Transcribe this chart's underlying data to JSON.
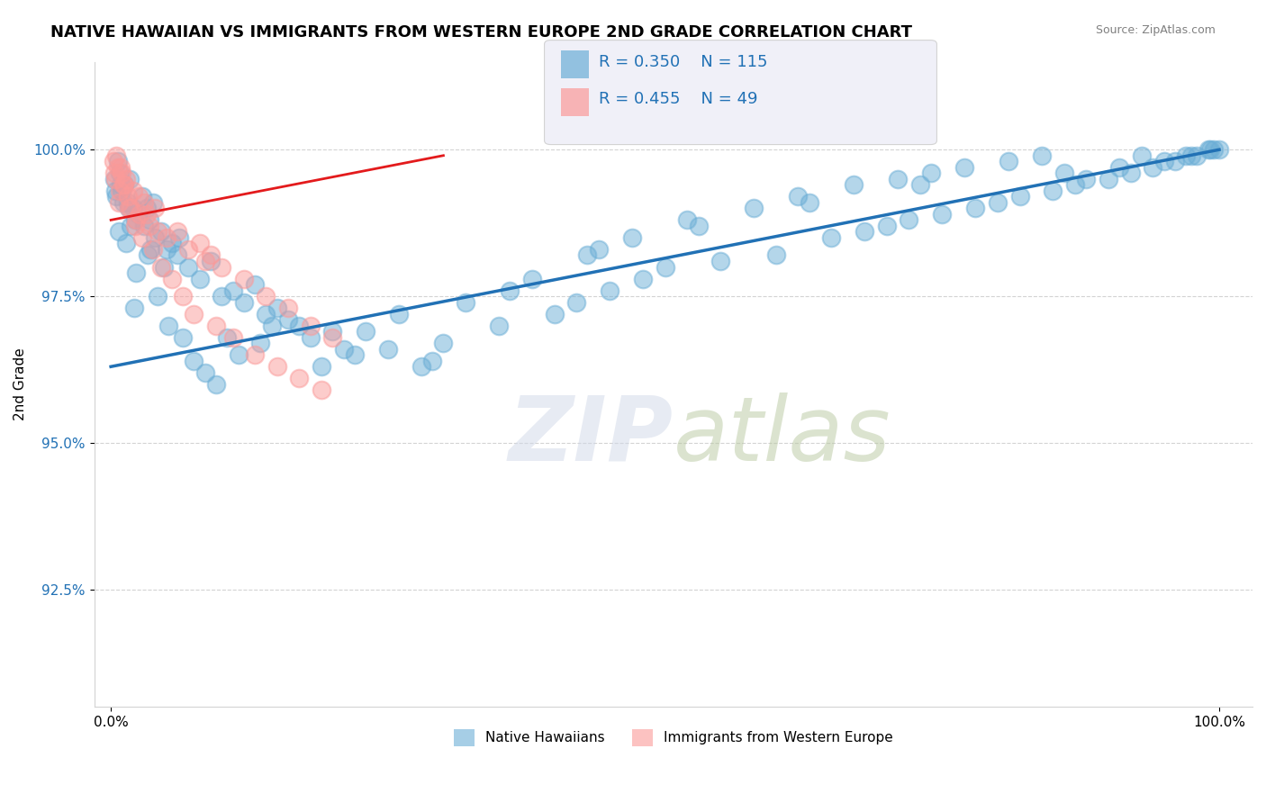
{
  "title": "NATIVE HAWAIIAN VS IMMIGRANTS FROM WESTERN EUROPE 2ND GRADE CORRELATION CHART",
  "source_text": "Source: ZipAtlas.com",
  "ylabel": "2nd Grade",
  "xlabel": "",
  "x_tick_labels": [
    "0.0%",
    "100.0%"
  ],
  "y_tick_labels": [
    "92.5%",
    "95.0%",
    "97.5%",
    "100.0%"
  ],
  "ylim": [
    90.5,
    101.5
  ],
  "xlim": [
    -1.5,
    103.0
  ],
  "blue_color": "#6baed6",
  "blue_line_color": "#2171b5",
  "pink_color": "#fb9a99",
  "pink_line_color": "#e31a1c",
  "legend_bg": "#e8e8f0",
  "legend_r1": "R = 0.350",
  "legend_n1": "N = 115",
  "legend_r2": "R = 0.455",
  "legend_n2": "N = 49",
  "watermark": "ZIPatlas",
  "blue_r": 0.35,
  "blue_n": 115,
  "pink_r": 0.455,
  "pink_n": 49,
  "blue_x_start": 0.0,
  "blue_x_end": 100.0,
  "blue_y_start": 96.3,
  "blue_y_end": 100.0,
  "pink_x_start": 0.0,
  "pink_x_end": 30.0,
  "pink_y_start": 98.8,
  "pink_y_end": 99.9,
  "blue_scatter_x": [
    0.3,
    0.5,
    0.6,
    0.8,
    1.0,
    1.2,
    1.5,
    1.7,
    2.0,
    2.2,
    2.5,
    2.8,
    3.0,
    3.2,
    3.5,
    3.8,
    4.0,
    4.5,
    5.0,
    5.5,
    6.0,
    7.0,
    8.0,
    9.0,
    10.0,
    11.0,
    12.0,
    13.0,
    14.0,
    15.0,
    16.0,
    17.0,
    18.0,
    20.0,
    22.0,
    25.0,
    28.0,
    30.0,
    35.0,
    40.0,
    42.0,
    45.0,
    48.0,
    50.0,
    55.0,
    60.0,
    65.0,
    68.0,
    70.0,
    72.0,
    75.0,
    78.0,
    80.0,
    82.0,
    85.0,
    87.0,
    90.0,
    92.0,
    94.0,
    95.0,
    96.0,
    97.0,
    98.0,
    99.0,
    99.5,
    100.0,
    0.4,
    0.7,
    1.1,
    1.4,
    1.8,
    2.3,
    3.3,
    4.2,
    5.2,
    6.5,
    7.5,
    8.5,
    9.5,
    11.5,
    13.5,
    19.0,
    23.0,
    26.0,
    32.0,
    38.0,
    43.0,
    47.0,
    52.0,
    58.0,
    62.0,
    67.0,
    71.0,
    74.0,
    77.0,
    81.0,
    84.0,
    88.0,
    91.0,
    93.0,
    97.5,
    99.2,
    4.8,
    2.1,
    0.9,
    1.6,
    3.6,
    6.2,
    10.5,
    14.5,
    21.0,
    29.0,
    36.0,
    44.0,
    53.0,
    63.0,
    73.0,
    86.0
  ],
  "blue_scatter_y": [
    99.5,
    99.2,
    99.8,
    99.6,
    99.3,
    99.4,
    99.1,
    99.5,
    99.0,
    98.8,
    98.9,
    99.2,
    98.7,
    99.0,
    98.8,
    99.1,
    98.5,
    98.6,
    98.3,
    98.4,
    98.2,
    98.0,
    97.8,
    98.1,
    97.5,
    97.6,
    97.4,
    97.7,
    97.2,
    97.3,
    97.1,
    97.0,
    96.8,
    96.9,
    96.5,
    96.6,
    96.3,
    96.7,
    97.0,
    97.2,
    97.4,
    97.6,
    97.8,
    98.0,
    98.1,
    98.2,
    98.5,
    98.6,
    98.7,
    98.8,
    98.9,
    99.0,
    99.1,
    99.2,
    99.3,
    99.4,
    99.5,
    99.6,
    99.7,
    99.8,
    99.8,
    99.9,
    99.9,
    100.0,
    100.0,
    100.0,
    99.3,
    98.6,
    99.1,
    98.4,
    98.7,
    97.9,
    98.2,
    97.5,
    97.0,
    96.8,
    96.4,
    96.2,
    96.0,
    96.5,
    96.7,
    96.3,
    96.9,
    97.2,
    97.4,
    97.8,
    98.2,
    98.5,
    98.8,
    99.0,
    99.2,
    99.4,
    99.5,
    99.6,
    99.7,
    99.8,
    99.9,
    99.5,
    99.7,
    99.9,
    99.9,
    100.0,
    98.0,
    97.3,
    99.4,
    99.0,
    98.3,
    98.5,
    96.8,
    97.0,
    96.6,
    96.4,
    97.6,
    98.3,
    98.7,
    99.1,
    99.4,
    99.6
  ],
  "pink_scatter_x": [
    0.2,
    0.4,
    0.6,
    0.8,
    1.0,
    1.2,
    1.5,
    1.8,
    2.0,
    2.3,
    2.6,
    3.0,
    3.5,
    4.0,
    5.0,
    6.0,
    7.0,
    8.0,
    9.0,
    10.0,
    12.0,
    14.0,
    16.0,
    18.0,
    20.0,
    0.3,
    0.7,
    1.1,
    1.6,
    2.2,
    2.8,
    3.8,
    4.5,
    5.5,
    6.5,
    7.5,
    9.5,
    11.0,
    13.0,
    15.0,
    17.0,
    19.0,
    0.5,
    0.9,
    1.4,
    2.5,
    3.2,
    4.2,
    8.5
  ],
  "pink_scatter_y": [
    99.8,
    99.5,
    99.7,
    99.3,
    99.6,
    99.4,
    99.2,
    99.0,
    99.3,
    98.8,
    98.9,
    99.1,
    98.7,
    99.0,
    98.5,
    98.6,
    98.3,
    98.4,
    98.2,
    98.0,
    97.8,
    97.5,
    97.3,
    97.0,
    96.8,
    99.6,
    99.1,
    99.4,
    99.0,
    98.7,
    98.5,
    98.3,
    98.0,
    97.8,
    97.5,
    97.2,
    97.0,
    96.8,
    96.5,
    96.3,
    96.1,
    95.9,
    99.9,
    99.7,
    99.5,
    99.2,
    98.9,
    98.6,
    98.1
  ]
}
